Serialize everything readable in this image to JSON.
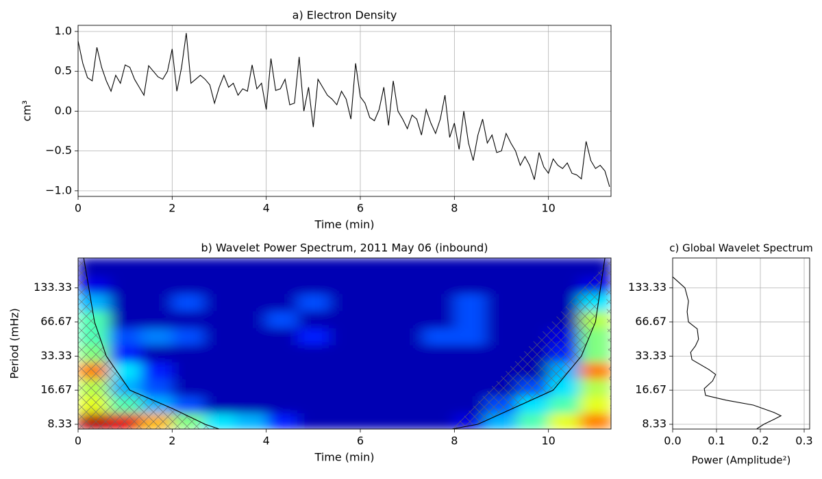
{
  "chart_data": [
    {
      "type": "line",
      "title": "a) Electron Density",
      "xlabel": "Time (min)",
      "ylabel": "cm³",
      "color": "#000000",
      "grid": true,
      "xlim": [
        0,
        11.33
      ],
      "ylim": [
        -1.07,
        1.077
      ],
      "xticks": [
        0,
        2,
        4,
        6,
        8,
        10
      ],
      "yticks": [
        {
          "value": -1.0,
          "label": "−1.0"
        },
        {
          "value": -0.5,
          "label": "−0.5"
        },
        {
          "value": 0.0,
          "label": "0.0"
        },
        {
          "value": 0.5,
          "label": "0.5"
        },
        {
          "value": 1.0,
          "label": "1.0"
        }
      ],
      "x": [
        0,
        0.1,
        0.2,
        0.3,
        0.4,
        0.5,
        0.6,
        0.7,
        0.8,
        0.9,
        1.0,
        1.1,
        1.2,
        1.3,
        1.4,
        1.5,
        1.6,
        1.7,
        1.8,
        1.9,
        2.0,
        2.1,
        2.2,
        2.3,
        2.4,
        2.5,
        2.6,
        2.7,
        2.8,
        2.9,
        3.0,
        3.1,
        3.2,
        3.3,
        3.4,
        3.5,
        3.6,
        3.7,
        3.8,
        3.9,
        4.0,
        4.1,
        4.2,
        4.3,
        4.4,
        4.5,
        4.6,
        4.7,
        4.8,
        4.9,
        5.0,
        5.1,
        5.2,
        5.3,
        5.4,
        5.5,
        5.6,
        5.7,
        5.8,
        5.9,
        6.0,
        6.1,
        6.2,
        6.3,
        6.4,
        6.5,
        6.6,
        6.7,
        6.8,
        6.9,
        7.0,
        7.1,
        7.2,
        7.3,
        7.4,
        7.5,
        7.6,
        7.7,
        7.8,
        7.9,
        8.0,
        8.1,
        8.2,
        8.3,
        8.4,
        8.5,
        8.6,
        8.7,
        8.8,
        8.9,
        9.0,
        9.1,
        9.2,
        9.3,
        9.4,
        9.5,
        9.6,
        9.7,
        9.8,
        9.9,
        10.0,
        10.1,
        10.2,
        10.3,
        10.4,
        10.5,
        10.6,
        10.7,
        10.8,
        10.9,
        11.0,
        11.1,
        11.2,
        11.3
      ],
      "values": [
        0.88,
        0.6,
        0.42,
        0.38,
        0.8,
        0.55,
        0.38,
        0.25,
        0.45,
        0.35,
        0.58,
        0.55,
        0.4,
        0.3,
        0.2,
        0.57,
        0.5,
        0.43,
        0.4,
        0.5,
        0.78,
        0.25,
        0.55,
        0.98,
        0.35,
        0.4,
        0.45,
        0.4,
        0.33,
        0.1,
        0.3,
        0.45,
        0.3,
        0.35,
        0.2,
        0.28,
        0.25,
        0.58,
        0.28,
        0.35,
        0.02,
        0.66,
        0.26,
        0.28,
        0.4,
        0.08,
        0.1,
        0.68,
        0.0,
        0.3,
        -0.2,
        0.4,
        0.3,
        0.2,
        0.15,
        0.08,
        0.25,
        0.15,
        -0.1,
        0.6,
        0.18,
        0.1,
        -0.08,
        -0.12,
        0.02,
        0.3,
        -0.18,
        0.38,
        0.0,
        -0.1,
        -0.22,
        -0.05,
        -0.1,
        -0.3,
        0.02,
        -0.15,
        -0.28,
        -0.1,
        0.2,
        -0.33,
        -0.15,
        -0.48,
        0.0,
        -0.4,
        -0.62,
        -0.3,
        -0.1,
        -0.4,
        -0.3,
        -0.52,
        -0.5,
        -0.28,
        -0.4,
        -0.5,
        -0.68,
        -0.57,
        -0.68,
        -0.86,
        -0.52,
        -0.7,
        -0.78,
        -0.6,
        -0.68,
        -0.72,
        -0.65,
        -0.78,
        -0.8,
        -0.85,
        -0.38,
        -0.62,
        -0.72,
        -0.68,
        -0.75,
        -0.95
      ]
    },
    {
      "type": "heatmap",
      "title": "b) Wavelet Power Spectrum, 2011 May 06 (inbound)",
      "xlabel": "Time (min)",
      "ylabel": "Period (mHz)",
      "xlim": [
        0,
        11.33
      ],
      "ylim": [
        7.56,
        245
      ],
      "yscale": "log",
      "colormap": "jet",
      "zlim": [
        0,
        1
      ],
      "hatch": true,
      "coi_color": "#000000",
      "xticks": [
        0,
        2,
        4,
        6,
        8,
        10
      ],
      "yticks": [
        8.33,
        16.67,
        33.33,
        66.67,
        133.33
      ],
      "x": [
        0.33,
        1,
        1.67,
        2.33,
        3,
        3.67,
        4.33,
        5,
        5.67,
        6.33,
        7,
        7.67,
        8.33,
        9,
        9.67,
        10.33,
        11
      ],
      "y": [
        8.8,
        12.5,
        17.6,
        25,
        35,
        50,
        70,
        100,
        141,
        200
      ],
      "z": [
        [
          0.95,
          0.9,
          0.7,
          0.5,
          0.35,
          0.3,
          0.15,
          0.05,
          0.05,
          0.05,
          0.05,
          0.05,
          0.1,
          0.3,
          0.45,
          0.6,
          0.75
        ],
        [
          0.6,
          0.45,
          0.3,
          0.2,
          0.05,
          0.05,
          0.05,
          0.05,
          0.05,
          0.05,
          0.05,
          0.05,
          0.05,
          0.2,
          0.35,
          0.45,
          0.6
        ],
        [
          0.55,
          0.3,
          0.2,
          0.05,
          0.05,
          0.05,
          0.05,
          0.05,
          0.05,
          0.05,
          0.05,
          0.05,
          0.05,
          0.05,
          0.2,
          0.35,
          0.55
        ],
        [
          0.75,
          0.35,
          0.15,
          0.05,
          0.05,
          0.05,
          0.05,
          0.05,
          0.05,
          0.05,
          0.05,
          0.05,
          0.05,
          0.05,
          0.05,
          0.3,
          0.75
        ],
        [
          0.5,
          0.15,
          0.05,
          0.05,
          0.05,
          0.05,
          0.05,
          0.05,
          0.05,
          0.05,
          0.05,
          0.05,
          0.05,
          0.05,
          0.05,
          0.15,
          0.5
        ],
        [
          0.45,
          0.2,
          0.25,
          0.2,
          0.05,
          0.05,
          0.05,
          0.15,
          0.05,
          0.05,
          0.05,
          0.2,
          0.2,
          0.05,
          0.05,
          0.1,
          0.5
        ],
        [
          0.45,
          0.05,
          0.05,
          0.05,
          0.05,
          0.05,
          0.2,
          0.05,
          0.05,
          0.05,
          0.05,
          0.05,
          0.2,
          0.05,
          0.05,
          0.05,
          0.55
        ],
        [
          0.3,
          0.05,
          0.05,
          0.2,
          0.05,
          0.05,
          0.05,
          0.2,
          0.05,
          0.05,
          0.05,
          0.05,
          0.2,
          0.05,
          0.05,
          0.05,
          0.35
        ],
        [
          0.1,
          0.05,
          0.05,
          0.05,
          0.05,
          0.05,
          0.05,
          0.05,
          0.05,
          0.05,
          0.05,
          0.05,
          0.05,
          0.05,
          0.05,
          0.05,
          0.1
        ],
        [
          0.05,
          0.05,
          0.05,
          0.05,
          0.05,
          0.05,
          0.05,
          0.05,
          0.05,
          0.05,
          0.05,
          0.05,
          0.05,
          0.05,
          0.05,
          0.05,
          0.05
        ]
      ],
      "coi": [
        {
          "x": [
            0.12,
            0.35,
            0.6,
            1.1,
            2.0,
            2.7,
            3.0
          ],
          "y": [
            245,
            66.67,
            33.33,
            16.67,
            11.5,
            8.33,
            7.56
          ]
        },
        {
          "x": [
            7.95,
            8.5,
            10.1,
            10.7,
            11.0,
            11.2
          ],
          "y": [
            7.56,
            8.33,
            16.67,
            33.33,
            66.67,
            245
          ]
        }
      ]
    },
    {
      "type": "profile",
      "title": "c) Global Wavelet Spectrum",
      "xlabel": "Power (Amplitude²)",
      "color": "#000000",
      "grid": true,
      "xlim": [
        0,
        0.3125
      ],
      "ylim": [
        7.56,
        245
      ],
      "yscale": "log",
      "xticks": [
        {
          "value": 0,
          "label": "0.0"
        },
        0.1,
        0.2,
        0.3
      ],
      "yticks": [
        8.33,
        16.67,
        33.33,
        66.67,
        133.33
      ],
      "y": [
        167,
        133.33,
        102,
        82,
        66.67,
        58,
        47,
        41,
        36,
        31,
        25.3,
        22.9,
        20.1,
        17.2,
        15,
        13.6,
        12.3,
        10.6,
        9.9,
        9.2,
        8.33,
        7.6
      ],
      "values": [
        0,
        0.028,
        0.036,
        0.033,
        0.036,
        0.056,
        0.059,
        0.052,
        0.041,
        0.044,
        0.083,
        0.098,
        0.091,
        0.072,
        0.075,
        0.122,
        0.184,
        0.231,
        0.247,
        0.231,
        0.208,
        0.192
      ]
    }
  ]
}
